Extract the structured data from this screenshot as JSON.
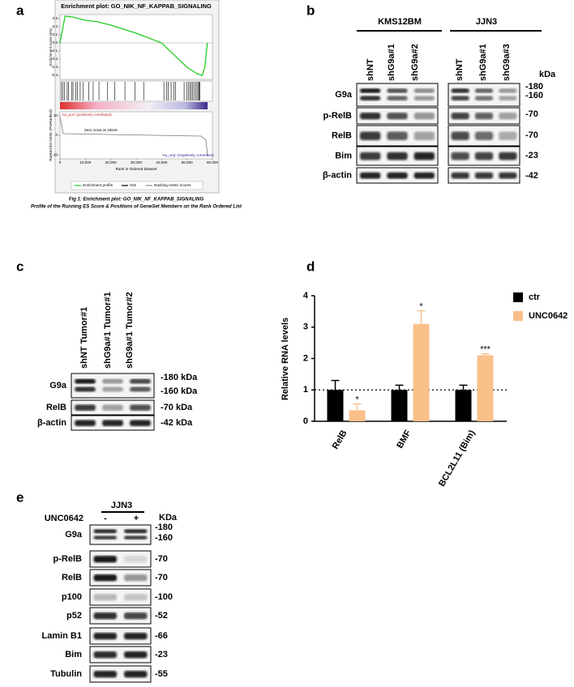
{
  "panel_labels": [
    "a",
    "b",
    "c",
    "d",
    "e"
  ],
  "panel_a": {
    "type": "line",
    "title": "Enrichment plot: GO_NIK_NF_KAPPAB_SIGNALING",
    "y_label": "Enrichment score (ES)",
    "x_label": "Rank in Ordered Dataset",
    "x": [
      0,
      2000,
      5000,
      10000,
      15000,
      20000,
      30000,
      40000,
      50000,
      54000,
      56000,
      57000,
      58000
    ],
    "values": [
      0,
      0.33,
      0.32,
      0.28,
      0.26,
      0.22,
      0.12,
      0.0,
      -0.3,
      -0.38,
      -0.4,
      -0.3,
      0
    ],
    "color": "#22cc22",
    "xlim": [
      0,
      60000
    ],
    "ylim": [
      -0.45,
      0.35
    ],
    "yticks": [
      0.3,
      0.2,
      0.1,
      {
        "value": 0,
        "label": "0.0"
      },
      -0.1,
      -0.2,
      -0.3,
      -0.4
    ],
    "xticks": [
      0,
      {
        "value": 10000,
        "label": "10,000"
      },
      {
        "value": 20000,
        "label": "20,000"
      },
      {
        "value": 30000,
        "label": "30,000"
      },
      {
        "value": 40000,
        "label": "40,000"
      },
      {
        "value": 50000,
        "label": "50,000"
      },
      {
        "value": 60000,
        "label": "60,000"
      }
    ],
    "metric_label": "Ranked list metric (PreRanked)",
    "metric_ylim": [
      -12,
      12
    ],
    "metric_yticks": [
      10,
      0,
      -10
    ],
    "pos_label": "'na_pos' (positively correlated)",
    "neg_label": "'na_neg' (negatively correlated)",
    "zero_cross": "Zero cross at 15516",
    "legend": [
      "Enrichment profile",
      "Hits",
      "Ranking metric scores"
    ],
    "caption": [
      "Fig 1: Enrichment plot: GO_NIK_NF_KAPPAB_SIGNALING",
      "Profile of the Running ES Score & Positions of GeneSet Members on the Rank Ordered List"
    ]
  },
  "panel_b": {
    "groups": [
      "KMS12BM",
      "JJN3"
    ],
    "lanes": [
      [
        "shNT",
        "shG9a#1",
        "shG9a#2"
      ],
      [
        "shNT",
        "shG9a#1",
        "shG9a#3"
      ]
    ],
    "rows": [
      "G9a",
      "p-RelB",
      "RelB",
      "Bim",
      "β-actin"
    ],
    "unit": "kDa",
    "markers": [
      "-180",
      "-160",
      "-70",
      "-70",
      "-23",
      "-42"
    ]
  },
  "panel_c": {
    "lanes": [
      "shNT  Tumor#1",
      "shG9a#1  Tumor#1",
      "shG9a#1  Tumor#2"
    ],
    "rows": [
      "G9a",
      "RelB",
      "β-actin"
    ],
    "markers": [
      "-180 kDa",
      "-160 kDa",
      "-70 kDa",
      "-42 kDa"
    ]
  },
  "panel_d": {
    "type": "bar",
    "y_label": "Relative RNA levels",
    "categories": [
      "RelB",
      "BMF",
      "BCL2L11 (Bim)"
    ],
    "series": [
      {
        "name": "ctr",
        "color": "#000000",
        "values": [
          1,
          1,
          1
        ],
        "errors": [
          0.3,
          0.15,
          0.15
        ]
      },
      {
        "name": "UNC0642",
        "color": "#f9c08a",
        "values": [
          0.35,
          3.1,
          2.1
        ],
        "errors": [
          0.2,
          0.42,
          0.05
        ],
        "significance": [
          "*",
          "*",
          "***"
        ]
      }
    ],
    "ylim": [
      0,
      4
    ],
    "yticks": [
      0,
      1,
      2,
      3,
      4
    ],
    "ref_line": 1
  },
  "panel_e": {
    "group": "JJN3",
    "treatment": "UNC0642",
    "lanes": [
      "-",
      "+"
    ],
    "unit": "KDa",
    "rows": [
      "G9a",
      "p-RelB",
      "RelB",
      "p100",
      "p52",
      "Lamin B1",
      "Bim",
      "Tubulin"
    ],
    "markers": [
      "-180",
      "-160",
      "-70",
      "-70",
      "-100",
      "-52",
      "-66",
      "-23",
      "-55"
    ]
  }
}
